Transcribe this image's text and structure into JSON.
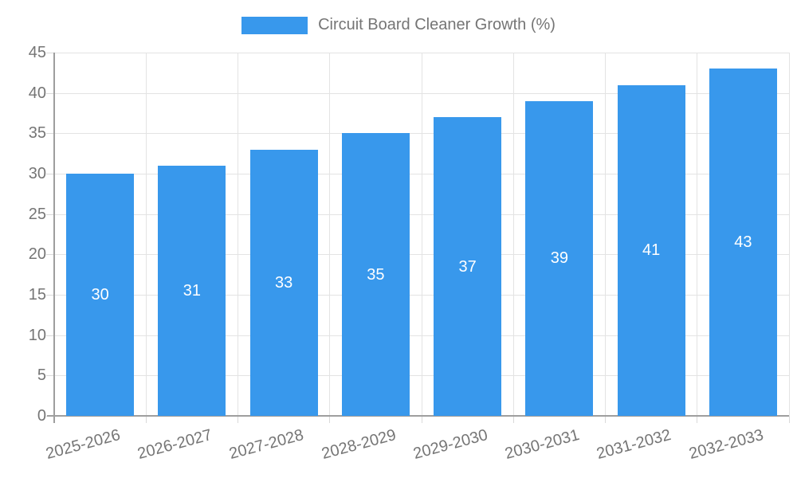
{
  "chart_data": {
    "type": "bar",
    "title": "Circuit Board Cleaner Growth (%)",
    "categories": [
      "2025-2026",
      "2026-2027",
      "2027-2028",
      "2028-2029",
      "2029-2030",
      "2030-2031",
      "2031-2032",
      "2032-2033"
    ],
    "values": [
      30,
      31,
      33,
      35,
      37,
      39,
      41,
      43
    ],
    "value_labels": [
      "30",
      "31",
      "33",
      "35",
      "37",
      "39",
      "41",
      "43"
    ],
    "ylim": [
      0,
      45
    ],
    "ytick_step": 5,
    "ytick_labels": [
      "0",
      "5",
      "10",
      "15",
      "20",
      "25",
      "30",
      "35",
      "40",
      "45"
    ],
    "grid": true,
    "legend_position": "top",
    "colors": {
      "bar": "#3898ec",
      "value_label": "#ffffff",
      "axis_line": "#9e9e9e",
      "gridline": "#e3e3e3",
      "tick": "#d9d9d9",
      "text": "#757575"
    }
  },
  "legend": {
    "label": "Circuit Board Cleaner Growth (%)"
  }
}
